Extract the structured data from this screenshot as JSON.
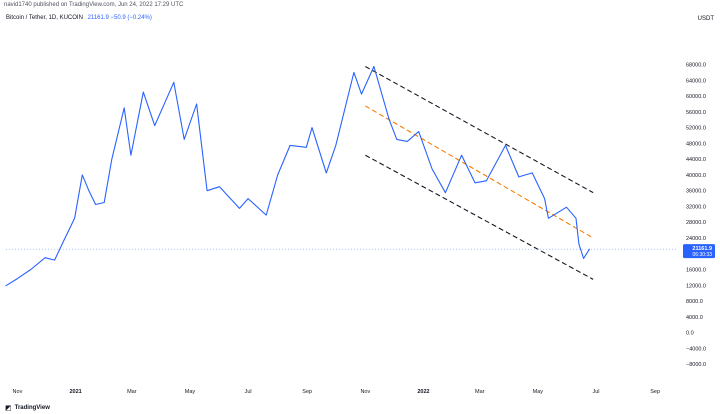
{
  "header": {
    "published": "navid1740 published on TradingView.com, Jun 24, 2022 17:29 UTC"
  },
  "legend": {
    "symbol": "Bitcoin / Tether, 1D, KUCOIN",
    "price_change": "21161.9 −50.9 (−0.24%)"
  },
  "price_tag": {
    "value": "21161.9",
    "countdown": "06:30:33"
  },
  "brand": {
    "name": "TradingView",
    "icon": "tradingview-logo-icon"
  },
  "colors": {
    "line": "#2962ff",
    "channel": "#131722",
    "midline": "#f57c00",
    "tag": "#2962ff",
    "axis_text": "#131722"
  },
  "chart_data": {
    "type": "line",
    "series": [
      {
        "values": [
          [
            "2020-10-20",
            11900
          ],
          [
            "2020-11-01",
            13700
          ],
          [
            "2020-11-15",
            16000
          ],
          [
            "2020-11-30",
            19000
          ],
          [
            "2020-12-10",
            18400
          ],
          [
            "2020-12-20",
            23500
          ],
          [
            "2020-12-31",
            29000
          ],
          [
            "2021-01-08",
            40000
          ],
          [
            "2021-01-15",
            36000
          ],
          [
            "2021-01-22",
            32500
          ],
          [
            "2021-01-31",
            33000
          ],
          [
            "2021-02-08",
            44000
          ],
          [
            "2021-02-21",
            57000
          ],
          [
            "2021-02-28",
            45000
          ],
          [
            "2021-03-13",
            61000
          ],
          [
            "2021-03-25",
            52500
          ],
          [
            "2021-04-14",
            63500
          ],
          [
            "2021-04-25",
            49000
          ],
          [
            "2021-05-08",
            58000
          ],
          [
            "2021-05-19",
            36000
          ],
          [
            "2021-06-01",
            37000
          ],
          [
            "2021-06-22",
            31500
          ],
          [
            "2021-07-01",
            34000
          ],
          [
            "2021-07-20",
            29800
          ],
          [
            "2021-08-01",
            40000
          ],
          [
            "2021-08-14",
            47500
          ],
          [
            "2021-08-31",
            47000
          ],
          [
            "2021-09-06",
            52000
          ],
          [
            "2021-09-21",
            40500
          ],
          [
            "2021-10-01",
            47500
          ],
          [
            "2021-10-20",
            66000
          ],
          [
            "2021-10-28",
            60500
          ],
          [
            "2021-11-10",
            67500
          ],
          [
            "2021-11-26",
            54000
          ],
          [
            "2021-12-04",
            49000
          ],
          [
            "2021-12-15",
            48500
          ],
          [
            "2021-12-27",
            51000
          ],
          [
            "2022-01-10",
            41500
          ],
          [
            "2022-01-24",
            35500
          ],
          [
            "2022-02-10",
            45000
          ],
          [
            "2022-02-24",
            38000
          ],
          [
            "2022-03-08",
            38500
          ],
          [
            "2022-03-28",
            47500
          ],
          [
            "2022-04-11",
            39500
          ],
          [
            "2022-04-25",
            40500
          ],
          [
            "2022-05-08",
            34000
          ],
          [
            "2022-05-12",
            29000
          ],
          [
            "2022-05-31",
            31800
          ],
          [
            "2022-06-10",
            29000
          ],
          [
            "2022-06-13",
            22500
          ],
          [
            "2022-06-18",
            18800
          ],
          [
            "2022-06-24",
            21161.9
          ]
        ]
      }
    ],
    "trendlines": [
      {
        "role": "upper",
        "style": "dashed",
        "color": "#131722",
        "from": [
          "2021-11-01",
          67500
        ],
        "to": [
          "2022-06-28",
          35500
        ]
      },
      {
        "role": "middle",
        "style": "dashed",
        "color": "#f57c00",
        "from": [
          "2021-11-01",
          57500
        ],
        "to": [
          "2022-06-28",
          24000
        ]
      },
      {
        "role": "lower",
        "style": "dashed",
        "color": "#131722",
        "from": [
          "2021-11-01",
          45000
        ],
        "to": [
          "2022-06-28",
          13500
        ]
      }
    ],
    "x_ticks": [
      {
        "date": "2020-11-01",
        "label": "Nov"
      },
      {
        "date": "2021-01-01",
        "label": "2021"
      },
      {
        "date": "2021-03-01",
        "label": "Mar"
      },
      {
        "date": "2021-05-01",
        "label": "May"
      },
      {
        "date": "2021-07-01",
        "label": "Jul"
      },
      {
        "date": "2021-09-01",
        "label": "Sep"
      },
      {
        "date": "2021-11-01",
        "label": "Nov"
      },
      {
        "date": "2022-01-01",
        "label": "2022"
      },
      {
        "date": "2022-03-01",
        "label": "Mar"
      },
      {
        "date": "2022-05-01",
        "label": "May"
      },
      {
        "date": "2022-07-01",
        "label": "Jul"
      },
      {
        "date": "2022-09-01",
        "label": "Sep"
      }
    ],
    "y_ticks": [
      {
        "value": 68000,
        "label": "68000.0"
      },
      {
        "value": 64000,
        "label": "64000.0"
      },
      {
        "value": 60000,
        "label": "60000.0"
      },
      {
        "value": 56000,
        "label": "56000.0"
      },
      {
        "value": 52000,
        "label": "52000.0"
      },
      {
        "value": 48000,
        "label": "48000.0"
      },
      {
        "value": 44000,
        "label": "44000.0"
      },
      {
        "value": 40000,
        "label": "40000.0"
      },
      {
        "value": 36000,
        "label": "36000.0"
      },
      {
        "value": 32000,
        "label": "32000.0"
      },
      {
        "value": 28000,
        "label": "28000.0"
      },
      {
        "value": 24000,
        "label": "24000.0"
      },
      {
        "value": 16000,
        "label": "16000.0"
      },
      {
        "value": 12000,
        "label": "12000.0"
      },
      {
        "value": 8000,
        "label": "8000.0"
      },
      {
        "value": 4000,
        "label": "4000.0"
      },
      {
        "value": 0,
        "label": "0.0"
      },
      {
        "value": -4000,
        "label": "−4000.0"
      },
      {
        "value": -8000,
        "label": "−8000.0"
      }
    ],
    "y_unit": "USDT",
    "ylim": [
      -10500,
      76000
    ],
    "xlim": [
      "2020-10-20",
      "2022-09-25"
    ],
    "grid": false,
    "last_price": 21161.9
  }
}
